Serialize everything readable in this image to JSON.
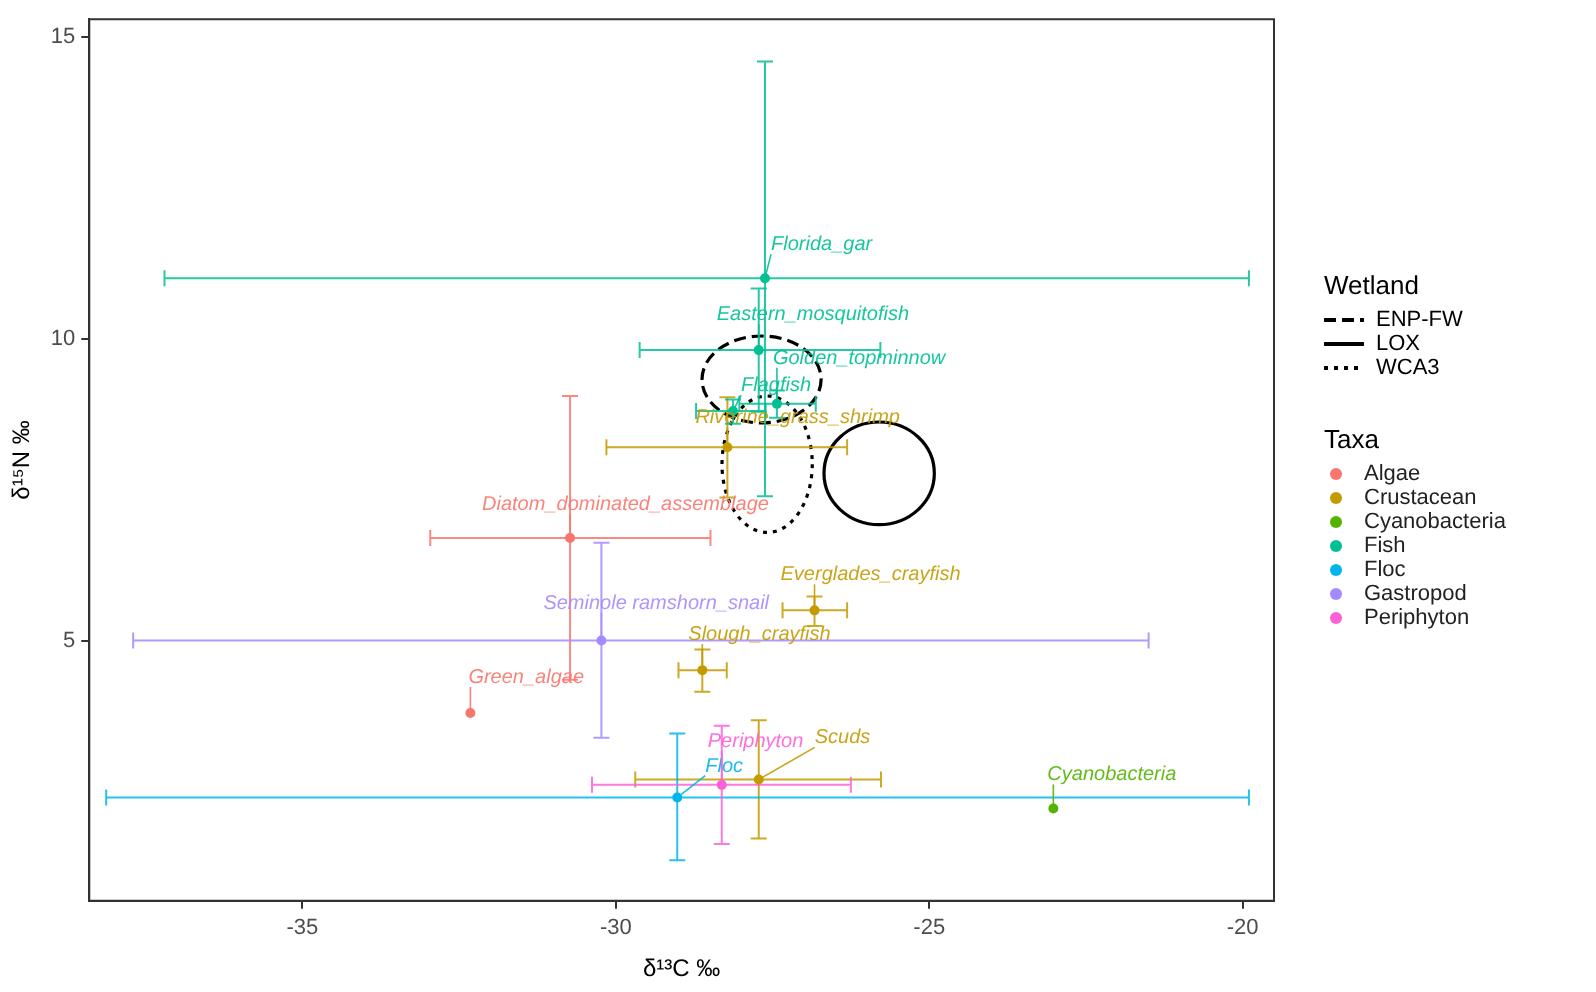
{
  "chart_data": {
    "type": "scatter",
    "xlabel": "δ¹³C ‰",
    "ylabel": "δ¹⁵N ‰",
    "xlim": [
      -38.4,
      -19.5
    ],
    "ylim": [
      0.7,
      15.3
    ],
    "xticks": [
      -35,
      -30,
      -25,
      -20
    ],
    "yticks": [
      5,
      10,
      15
    ],
    "grid": false,
    "legend": "right",
    "legend_title": "Taxa",
    "marker": "circle",
    "series": [
      {
        "name": "Algae",
        "color": "#f8766d",
        "x": [
          -30.73,
          -32.32
        ],
        "values": [
          6.71,
          3.81
        ],
        "xerrors": [
          [
            -32.96,
            -28.49
          ],
          null
        ],
        "errors": [
          [
            4.36,
            9.06
          ],
          null
        ]
      },
      {
        "name": "Crustacean",
        "color": "#c49a00",
        "x": [
          -28.22,
          -26.83,
          -28.62,
          -27.72
        ],
        "values": [
          8.21,
          5.51,
          4.52,
          2.71
        ],
        "xerrors": [
          [
            -30.15,
            -26.31
          ],
          [
            -27.34,
            -26.31
          ],
          [
            -29.0,
            -28.23
          ],
          [
            -29.69,
            -25.77
          ]
        ],
        "errors": [
          [
            7.38,
            9.04
          ],
          [
            5.25,
            5.74
          ],
          [
            4.16,
            4.86
          ],
          [
            1.73,
            3.69
          ]
        ]
      },
      {
        "name": "Cyanobacteria",
        "color": "#53b400",
        "x": [
          -23.02
        ],
        "values": [
          2.23
        ],
        "xerrors": [
          null
        ],
        "errors": [
          null
        ]
      },
      {
        "name": "Fish",
        "color": "#00c094",
        "x": [
          -27.62,
          -27.72,
          -27.43,
          -28.13
        ],
        "values": [
          11.01,
          9.82,
          8.93,
          8.81
        ],
        "xerrors": [
          [
            -37.2,
            -19.9
          ],
          [
            -29.62,
            -25.78
          ],
          [
            -28.03,
            -26.81
          ],
          [
            -28.72,
            -27.61
          ]
        ],
        "errors": [
          [
            7.4,
            14.6
          ],
          [
            8.8,
            10.84
          ],
          [
            8.7,
            9.15
          ],
          [
            8.6,
            9.0
          ]
        ]
      },
      {
        "name": "Floc",
        "color": "#00b6eb",
        "x": [
          -29.02
        ],
        "values": [
          2.41
        ],
        "xerrors": [
          [
            -38.13,
            -19.9
          ]
        ],
        "errors": [
          [
            1.37,
            3.47
          ]
        ]
      },
      {
        "name": "Gastropod",
        "color": "#a58aff",
        "x": [
          -30.23
        ],
        "values": [
          5.01
        ],
        "xerrors": [
          [
            -37.7,
            -21.5
          ]
        ],
        "errors": [
          [
            3.4,
            6.63
          ]
        ]
      },
      {
        "name": "Periphyton",
        "color": "#fb61d7",
        "x": [
          -28.31
        ],
        "values": [
          2.62
        ],
        "xerrors": [
          [
            -30.38,
            -26.25
          ]
        ],
        "errors": [
          [
            1.64,
            3.6
          ]
        ]
      }
    ],
    "annotations": [
      "Wetland",
      "ENP-FW",
      "LOX",
      "WCA3",
      {
        "text": "Florida_gar",
        "x": -27.62,
        "y": 11.01
      },
      {
        "text": "Eastern_mosquitofish",
        "x": -27.72,
        "y": 9.82
      },
      {
        "text": "Golden_topminnow",
        "x": -27.43,
        "y": 8.93
      },
      {
        "text": "Flagfish",
        "x": -28.13,
        "y": 8.81
      },
      {
        "text": "Riverine_grass_shrimp",
        "x": -28.22,
        "y": 8.21
      },
      {
        "text": "Diatom_dominated_assemblage",
        "x": -30.73,
        "y": 6.71
      },
      {
        "text": "Green_algae",
        "x": -32.32,
        "y": 3.81
      },
      {
        "text": "Seminole ramshorn_snail",
        "x": -30.23,
        "y": 5.01
      },
      {
        "text": "Everglades_crayfish",
        "x": -26.83,
        "y": 5.51
      },
      {
        "text": "Slough_crayfish",
        "x": -28.62,
        "y": 4.52
      },
      {
        "text": "Floc",
        "x": -29.02,
        "y": 2.41
      },
      {
        "text": "Periphyton",
        "x": -28.31,
        "y": 2.62
      },
      {
        "text": "Scuds",
        "x": -27.72,
        "y": 2.71
      },
      {
        "text": "Cyanobacteria",
        "x": -23.02,
        "y": 2.23
      }
    ]
  }
}
